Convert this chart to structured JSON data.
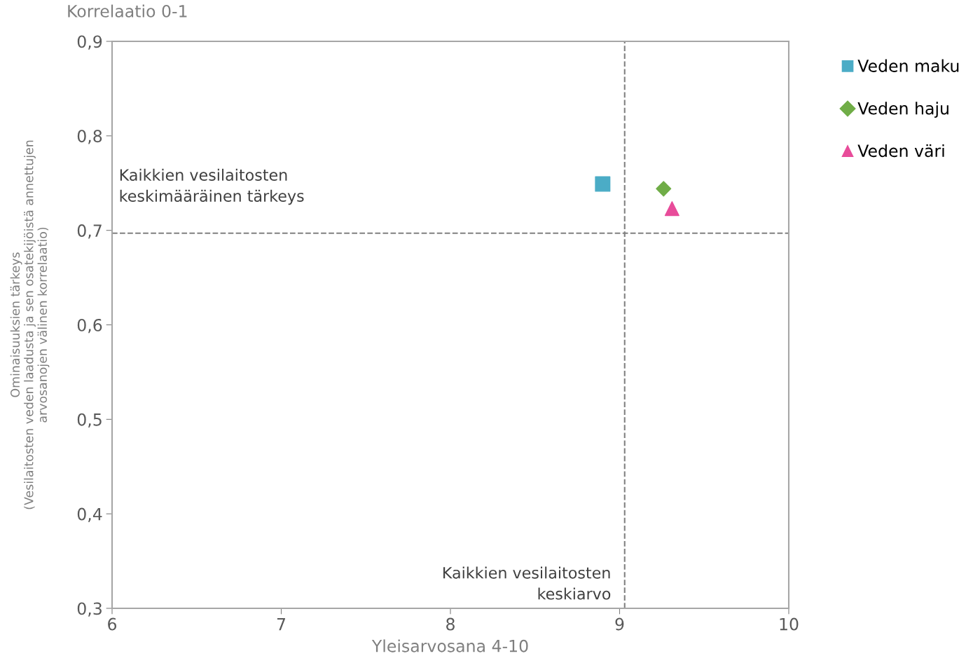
{
  "chart_data": {
    "type": "scatter",
    "title": "Korrelaatio 0-1",
    "xlabel": "Yleisarvosana 4-10",
    "ylabel": "Ominaisuuksien tärkeys\n(Vesilaitosten veden laadusta ja sen osatekijöistä annettujen\narvosanojen välinen korrelaatio)",
    "xlim": [
      6,
      10
    ],
    "ylim": [
      0.3,
      0.9
    ],
    "xticks": [
      6,
      7,
      8,
      9,
      10
    ],
    "yticks": [
      {
        "value": 0.3,
        "label": "0,3"
      },
      {
        "value": 0.4,
        "label": "0,4"
      },
      {
        "value": 0.5,
        "label": "0,5"
      },
      {
        "value": 0.6,
        "label": "0,6"
      },
      {
        "value": 0.7,
        "label": "0,7"
      },
      {
        "value": 0.8,
        "label": "0,8"
      },
      {
        "value": 0.9,
        "label": "0,9"
      }
    ],
    "series": [
      {
        "name": "Veden maku",
        "color": "#4bacc6",
        "marker": "square",
        "x": [
          8.9
        ],
        "values": [
          0.749
        ]
      },
      {
        "name": "Veden haju",
        "color": "#70ad47",
        "marker": "diamond",
        "x": [
          9.26
        ],
        "values": [
          0.744
        ]
      },
      {
        "name": "Veden väri",
        "color": "#e84c9a",
        "marker": "triangle",
        "x": [
          9.31
        ],
        "values": [
          0.723
        ]
      }
    ],
    "ref_lines": [
      {
        "axis": "x",
        "value": 9.03,
        "label": "Kaikkien vesilaitosten\nkeskiarvo",
        "color": "#808080",
        "line_style": "dashed"
      },
      {
        "axis": "y",
        "value": 0.697,
        "label": "Kaikkien vesilaitosten\nkeskimääräinen tärkeys",
        "color": "#808080",
        "line_style": "dashed"
      }
    ],
    "grid": false,
    "legend": "right"
  }
}
